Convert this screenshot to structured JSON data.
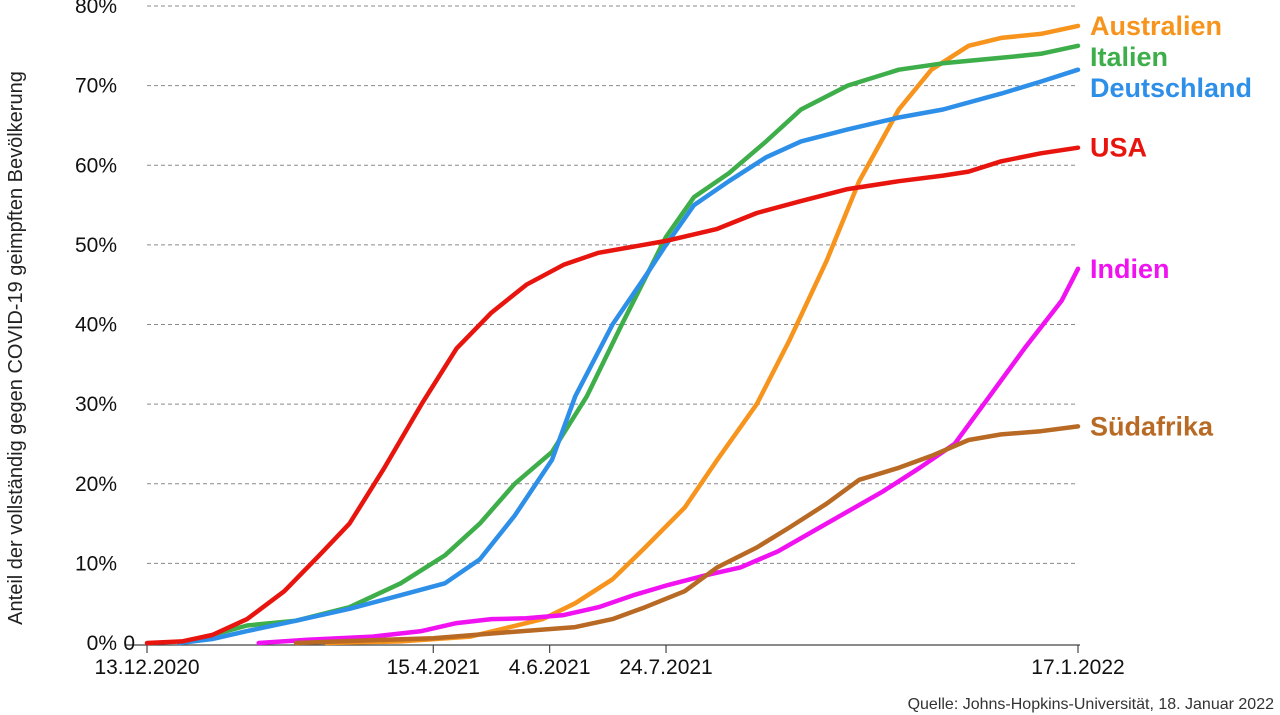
{
  "chart_data": {
    "type": "line",
    "ylabel": "Anteil der vollständig gegen COVID-19 geimpften Bevölkerung",
    "ylim": [
      0,
      80
    ],
    "yticks": [
      {
        "value": 0,
        "label": "0%"
      },
      {
        "value": 10,
        "label": "10%"
      },
      {
        "value": 20,
        "label": "20%"
      },
      {
        "value": 30,
        "label": "30%"
      },
      {
        "value": 40,
        "label": "40%"
      },
      {
        "value": 50,
        "label": "50%"
      },
      {
        "value": 60,
        "label": "60%"
      },
      {
        "value": 70,
        "label": "70%"
      },
      {
        "value": 80,
        "label": "80%"
      }
    ],
    "x_origin_label": "0",
    "xrange": [
      "2020-12-13",
      "2022-01-17"
    ],
    "xticks": [
      {
        "date": "2020-12-13",
        "label": "13.12.2020"
      },
      {
        "date": "2021-04-15",
        "label": "15.4.2021"
      },
      {
        "date": "2021-06-04",
        "label": "4.6.2021"
      },
      {
        "date": "2021-07-24",
        "label": "24.7.2021"
      },
      {
        "date": "2022-01-17",
        "label": "17.1.2022"
      }
    ],
    "grid": "horizontal dashed",
    "series": [
      {
        "name": "Australien",
        "color": "#F7941D",
        "points": [
          [
            "2021-02-28",
            0
          ],
          [
            "2021-04-01",
            0.2
          ],
          [
            "2021-05-01",
            0.8
          ],
          [
            "2021-06-01",
            3
          ],
          [
            "2021-06-15",
            5
          ],
          [
            "2021-07-01",
            8
          ],
          [
            "2021-07-15",
            12
          ],
          [
            "2021-08-01",
            17
          ],
          [
            "2021-08-15",
            23
          ],
          [
            "2021-09-01",
            30
          ],
          [
            "2021-09-15",
            38
          ],
          [
            "2021-10-01",
            48
          ],
          [
            "2021-10-15",
            58
          ],
          [
            "2021-11-01",
            67
          ],
          [
            "2021-11-15",
            72
          ],
          [
            "2021-12-01",
            75
          ],
          [
            "2021-12-15",
            76
          ],
          [
            "2022-01-01",
            76.5
          ],
          [
            "2022-01-17",
            77.5
          ]
        ]
      },
      {
        "name": "Italien",
        "color": "#3DAE49",
        "points": [
          [
            "2020-12-27",
            0
          ],
          [
            "2021-01-10",
            1
          ],
          [
            "2021-01-25",
            2.2
          ],
          [
            "2021-02-15",
            2.8
          ],
          [
            "2021-03-10",
            4.5
          ],
          [
            "2021-04-01",
            7.5
          ],
          [
            "2021-04-20",
            11
          ],
          [
            "2021-05-05",
            15
          ],
          [
            "2021-05-20",
            20
          ],
          [
            "2021-06-05",
            24
          ],
          [
            "2021-06-20",
            31
          ],
          [
            "2021-07-05",
            40
          ],
          [
            "2021-07-24",
            51
          ],
          [
            "2021-08-05",
            56
          ],
          [
            "2021-08-20",
            59
          ],
          [
            "2021-09-05",
            63
          ],
          [
            "2021-09-20",
            67
          ],
          [
            "2021-10-10",
            70
          ],
          [
            "2021-11-01",
            72
          ],
          [
            "2021-11-20",
            72.8
          ],
          [
            "2021-12-15",
            73.5
          ],
          [
            "2022-01-01",
            74
          ],
          [
            "2022-01-17",
            75
          ]
        ]
      },
      {
        "name": "Deutschland",
        "color": "#2E8FE8",
        "points": [
          [
            "2020-12-27",
            0
          ],
          [
            "2021-01-10",
            0.5
          ],
          [
            "2021-01-25",
            1.5
          ],
          [
            "2021-02-15",
            2.8
          ],
          [
            "2021-03-10",
            4.3
          ],
          [
            "2021-04-01",
            6
          ],
          [
            "2021-04-20",
            7.5
          ],
          [
            "2021-05-05",
            10.5
          ],
          [
            "2021-05-20",
            16
          ],
          [
            "2021-06-05",
            23
          ],
          [
            "2021-06-15",
            31
          ],
          [
            "2021-07-01",
            40
          ],
          [
            "2021-07-15",
            46
          ],
          [
            "2021-07-24",
            50
          ],
          [
            "2021-08-05",
            55
          ],
          [
            "2021-08-20",
            58
          ],
          [
            "2021-09-05",
            61
          ],
          [
            "2021-09-20",
            63
          ],
          [
            "2021-10-10",
            64.5
          ],
          [
            "2021-11-01",
            66
          ],
          [
            "2021-11-20",
            67
          ],
          [
            "2021-12-15",
            69
          ],
          [
            "2022-01-01",
            70.5
          ],
          [
            "2022-01-17",
            72
          ]
        ]
      },
      {
        "name": "USA",
        "color": "#E8150F",
        "points": [
          [
            "2020-12-13",
            0
          ],
          [
            "2020-12-28",
            0.2
          ],
          [
            "2021-01-10",
            1
          ],
          [
            "2021-01-25",
            3
          ],
          [
            "2021-02-10",
            6.5
          ],
          [
            "2021-02-25",
            11
          ],
          [
            "2021-03-10",
            15
          ],
          [
            "2021-03-25",
            22
          ],
          [
            "2021-04-10",
            30
          ],
          [
            "2021-04-25",
            37
          ],
          [
            "2021-05-10",
            41.5
          ],
          [
            "2021-05-25",
            45
          ],
          [
            "2021-06-10",
            47.5
          ],
          [
            "2021-06-25",
            49
          ],
          [
            "2021-07-24",
            50.5
          ],
          [
            "2021-08-15",
            52
          ],
          [
            "2021-09-01",
            54
          ],
          [
            "2021-09-20",
            55.5
          ],
          [
            "2021-10-10",
            57
          ],
          [
            "2021-11-01",
            58
          ],
          [
            "2021-11-20",
            58.7
          ],
          [
            "2021-12-01",
            59.2
          ],
          [
            "2021-12-15",
            60.5
          ],
          [
            "2022-01-01",
            61.5
          ],
          [
            "2022-01-17",
            62.2
          ]
        ]
      },
      {
        "name": "Indien",
        "color": "#F012F0",
        "points": [
          [
            "2021-01-30",
            0
          ],
          [
            "2021-02-20",
            0.4
          ],
          [
            "2021-03-20",
            0.8
          ],
          [
            "2021-04-10",
            1.5
          ],
          [
            "2021-04-25",
            2.5
          ],
          [
            "2021-05-10",
            3
          ],
          [
            "2021-05-25",
            3.1
          ],
          [
            "2021-06-10",
            3.5
          ],
          [
            "2021-06-25",
            4.5
          ],
          [
            "2021-07-10",
            6
          ],
          [
            "2021-07-25",
            7.3
          ],
          [
            "2021-08-10",
            8.5
          ],
          [
            "2021-08-25",
            9.5
          ],
          [
            "2021-09-10",
            11.5
          ],
          [
            "2021-09-25",
            14
          ],
          [
            "2021-10-10",
            16.5
          ],
          [
            "2021-10-25",
            19
          ],
          [
            "2021-11-10",
            22
          ],
          [
            "2021-11-25",
            25
          ],
          [
            "2021-12-10",
            31
          ],
          [
            "2021-12-25",
            37
          ],
          [
            "2022-01-10",
            43
          ],
          [
            "2022-01-17",
            47
          ]
        ]
      },
      {
        "name": "Südafrika",
        "color": "#B86A24",
        "points": [
          [
            "2021-02-15",
            0
          ],
          [
            "2021-03-15",
            0.3
          ],
          [
            "2021-04-15",
            0.6
          ],
          [
            "2021-05-15",
            1.3
          ],
          [
            "2021-06-15",
            2
          ],
          [
            "2021-07-01",
            3
          ],
          [
            "2021-07-15",
            4.5
          ],
          [
            "2021-08-01",
            6.5
          ],
          [
            "2021-08-15",
            9.5
          ],
          [
            "2021-09-01",
            12
          ],
          [
            "2021-09-15",
            14.5
          ],
          [
            "2021-10-01",
            17.5
          ],
          [
            "2021-10-15",
            20.5
          ],
          [
            "2021-11-01",
            22
          ],
          [
            "2021-11-15",
            23.5
          ],
          [
            "2021-12-01",
            25.5
          ],
          [
            "2021-12-15",
            26.2
          ],
          [
            "2022-01-01",
            26.6
          ],
          [
            "2022-01-17",
            27.2
          ]
        ]
      }
    ]
  },
  "source": "Quelle:  Johns-Hopkins-Universität, 18. Januar 2022"
}
